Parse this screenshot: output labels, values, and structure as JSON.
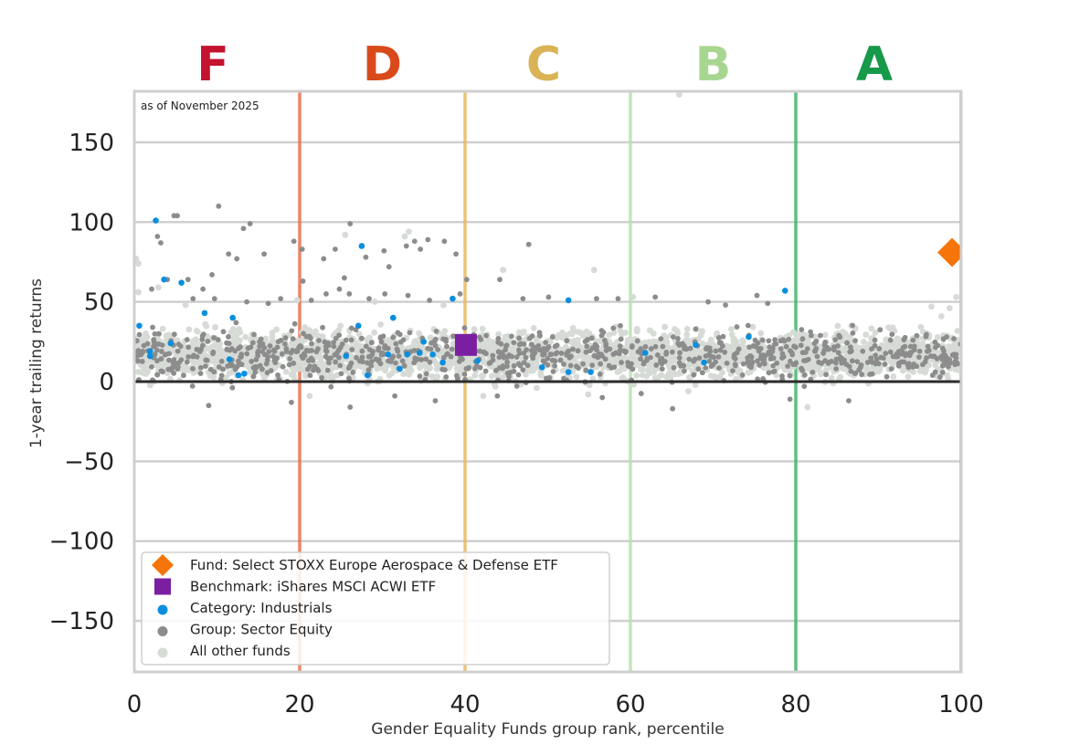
{
  "chart_data": {
    "type": "scatter",
    "note": "as of November 2025",
    "xlabel": "Gender Equality Funds group rank, percentile",
    "ylabel": "1-year trailing returns",
    "xlim": [
      0,
      100
    ],
    "ylim": [
      -182,
      182
    ],
    "xticks": [
      "0",
      "20",
      "40",
      "60",
      "80",
      "100"
    ],
    "yticks": [
      "150",
      "100",
      "50",
      "0",
      "−50",
      "−100",
      "−150"
    ],
    "grid": "horizontal",
    "zero_line": 0,
    "grade_bands": [
      {
        "grade": "F",
        "color": "#c4122f",
        "line_color": "#e8704f",
        "boundary": 20,
        "center": 9.5
      },
      {
        "grade": "D",
        "color": "#d94a1a",
        "line_color": "#e8b860",
        "boundary": 40,
        "center": 30
      },
      {
        "grade": "C",
        "color": "#d9b356",
        "line_color": "#b9e0b0",
        "boundary": 60,
        "center": 49.5
      },
      {
        "grade": "B",
        "color": "#a8d690",
        "line_color": "#3fb56a",
        "boundary": 80,
        "center": 70
      },
      {
        "grade": "A",
        "color": "#17994a",
        "line_color": "#3fb56a",
        "boundary": 100,
        "center": 89.5
      }
    ],
    "legend_position": "bottom-left",
    "series": [
      {
        "name": "Fund: Select STOXX Europe Aerospace & Defense ETF",
        "marker": "diamond",
        "color": "#f5750a",
        "points": [
          [
            98.9,
            81
          ]
        ]
      },
      {
        "name": "Benchmark: iShares MSCI ACWI ETF",
        "marker": "square",
        "color": "#7b1fa2",
        "points": [
          [
            40.1,
            23
          ]
        ]
      },
      {
        "name": "Category: Industrials",
        "marker": "circle",
        "color": "#0a8fdf",
        "points": [
          [
            2.6,
            101
          ],
          [
            3.6,
            64
          ],
          [
            5.7,
            62
          ],
          [
            8.5,
            43
          ],
          [
            4.4,
            24
          ],
          [
            1.9,
            19
          ],
          [
            1.9,
            16
          ],
          [
            0.6,
            35
          ],
          [
            11.5,
            14
          ],
          [
            12.6,
            4
          ],
          [
            13.3,
            5
          ],
          [
            11.9,
            40
          ],
          [
            25.6,
            16
          ],
          [
            27.5,
            85
          ],
          [
            28.2,
            4
          ],
          [
            27.1,
            35
          ],
          [
            30.7,
            17
          ],
          [
            31.3,
            40
          ],
          [
            32.1,
            8
          ],
          [
            33.0,
            17
          ],
          [
            34.5,
            18
          ],
          [
            35.0,
            25
          ],
          [
            36.1,
            17
          ],
          [
            37.3,
            12
          ],
          [
            38.5,
            52
          ],
          [
            39.8,
            20
          ],
          [
            41.5,
            13
          ],
          [
            49.3,
            9
          ],
          [
            52.5,
            51
          ],
          [
            52.5,
            6
          ],
          [
            55.2,
            6
          ],
          [
            61.8,
            18
          ],
          [
            67.9,
            23
          ],
          [
            68.9,
            12
          ],
          [
            74.3,
            28
          ],
          [
            78.7,
            57
          ]
        ]
      },
      {
        "name": "Group: Sector Equity",
        "marker": "circle",
        "color": "#8c8c8c",
        "points": [
          [
            4.8,
            104
          ],
          [
            5.2,
            104
          ],
          [
            10.2,
            110
          ],
          [
            13.2,
            96
          ],
          [
            14.0,
            99
          ],
          [
            2.8,
            91
          ],
          [
            3.2,
            87
          ],
          [
            4.0,
            64
          ],
          [
            6.5,
            64
          ],
          [
            8.3,
            58
          ],
          [
            9.4,
            67
          ],
          [
            11.4,
            80
          ],
          [
            12.4,
            77
          ],
          [
            15.7,
            80
          ],
          [
            19.3,
            88
          ],
          [
            20.3,
            83
          ],
          [
            22.9,
            77
          ],
          [
            24.3,
            83
          ],
          [
            26.1,
            99
          ],
          [
            28.0,
            78
          ],
          [
            30.2,
            82
          ],
          [
            30.8,
            72
          ],
          [
            32.9,
            85
          ],
          [
            33.9,
            88
          ],
          [
            34.6,
            83
          ],
          [
            35.5,
            89
          ],
          [
            37.5,
            88
          ],
          [
            38.9,
            80
          ],
          [
            39.4,
            55
          ],
          [
            40.2,
            64
          ],
          [
            44.2,
            64
          ],
          [
            47.7,
            86
          ],
          [
            20.4,
            63
          ],
          [
            23.2,
            55
          ],
          [
            24.8,
            58
          ],
          [
            25.4,
            65
          ],
          [
            2.1,
            58
          ],
          [
            7.1,
            52
          ],
          [
            9.7,
            52
          ],
          [
            13.6,
            50
          ],
          [
            16.2,
            49
          ],
          [
            17.7,
            52
          ],
          [
            21.4,
            51
          ],
          [
            26.0,
            55
          ],
          [
            28.4,
            52
          ],
          [
            30.3,
            55
          ],
          [
            33.1,
            54
          ],
          [
            35.7,
            51
          ],
          [
            47.0,
            52
          ],
          [
            50.1,
            53
          ],
          [
            55.9,
            52
          ],
          [
            58.5,
            52
          ],
          [
            63.0,
            53
          ],
          [
            69.4,
            50
          ],
          [
            71.5,
            48
          ],
          [
            75.3,
            54
          ],
          [
            76.6,
            49
          ],
          [
            9.0,
            -15
          ],
          [
            19.0,
            -13
          ],
          [
            26.1,
            -16
          ],
          [
            31.5,
            -9
          ],
          [
            36.4,
            -12
          ],
          [
            43.9,
            -9
          ],
          [
            56.6,
            -10
          ],
          [
            65.1,
            -17
          ],
          [
            79.3,
            -11
          ],
          [
            86.4,
            -12
          ]
        ]
      },
      {
        "name": "All other funds",
        "marker": "circle",
        "color": "#d6dbd6",
        "points": [
          [
            65.9,
            180
          ],
          [
            0.2,
            77
          ],
          [
            0.5,
            74
          ],
          [
            25.5,
            92
          ],
          [
            33.2,
            94
          ],
          [
            32.7,
            91
          ],
          [
            44.6,
            70
          ],
          [
            55.6,
            70
          ],
          [
            60.3,
            53
          ],
          [
            96.4,
            47
          ],
          [
            97.6,
            41
          ],
          [
            98.6,
            46
          ],
          [
            99.4,
            53
          ],
          [
            100.0,
            53
          ],
          [
            81.4,
            -16
          ],
          [
            0.5,
            56
          ],
          [
            2.9,
            59
          ],
          [
            6.2,
            48
          ],
          [
            19.7,
            51
          ],
          [
            29.1,
            50
          ],
          [
            37.4,
            48
          ],
          [
            21.2,
            -9
          ],
          [
            42.2,
            -9
          ],
          [
            54.9,
            -8
          ],
          [
            67.0,
            -6
          ]
        ]
      }
    ],
    "cloud": {
      "comment": "dense bands of funds concentrated around 0 to 40 return; exact values not individually labelled",
      "all_other_band": [
        -8,
        55
      ],
      "group_band": [
        -10,
        45
      ],
      "seed": 7
    }
  }
}
